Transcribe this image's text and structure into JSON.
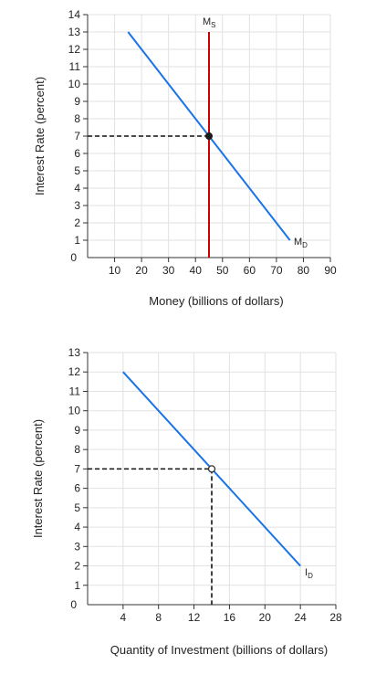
{
  "chart_data": [
    {
      "type": "line",
      "xlabel": "Money (billions of dollars)",
      "ylabel": "Interest Rate (percent)",
      "xlim": [
        0,
        90
      ],
      "ylim": [
        0,
        14
      ],
      "x_ticks": [
        "10",
        "20",
        "30",
        "40",
        "50",
        "60",
        "70",
        "80",
        "90"
      ],
      "y_ticks": [
        "1",
        "2",
        "3",
        "4",
        "5",
        "6",
        "7",
        "8",
        "9",
        "10",
        "11",
        "12",
        "13",
        "14"
      ],
      "origin_label": "0",
      "grid": true,
      "series": [
        {
          "name": "M",
          "subscript": "D",
          "color": "#1a73e8",
          "x": [
            15,
            75
          ],
          "y": [
            13,
            1
          ]
        },
        {
          "name": "M",
          "subscript": "S",
          "color": "#cc0000",
          "x": [
            45,
            45
          ],
          "y": [
            0,
            13
          ]
        }
      ],
      "equilibrium": {
        "x": 45,
        "y": 7,
        "marker": "filled"
      }
    },
    {
      "type": "line",
      "xlabel": "Quantity of Investment (billions of dollars)",
      "ylabel": "Interest Rate (percent)",
      "xlim": [
        0,
        28
      ],
      "ylim": [
        0,
        13
      ],
      "x_ticks": [
        "4",
        "8",
        "12",
        "16",
        "20",
        "24",
        "28"
      ],
      "y_ticks": [
        "1",
        "2",
        "3",
        "4",
        "5",
        "6",
        "7",
        "8",
        "9",
        "10",
        "11",
        "12",
        "13"
      ],
      "origin_label": "0",
      "grid": true,
      "series": [
        {
          "name": "I",
          "subscript": "D",
          "color": "#1a73e8",
          "x": [
            4,
            24
          ],
          "y": [
            12,
            2
          ]
        }
      ],
      "equilibrium": {
        "x": 14,
        "y": 7,
        "marker": "hollow"
      }
    }
  ]
}
